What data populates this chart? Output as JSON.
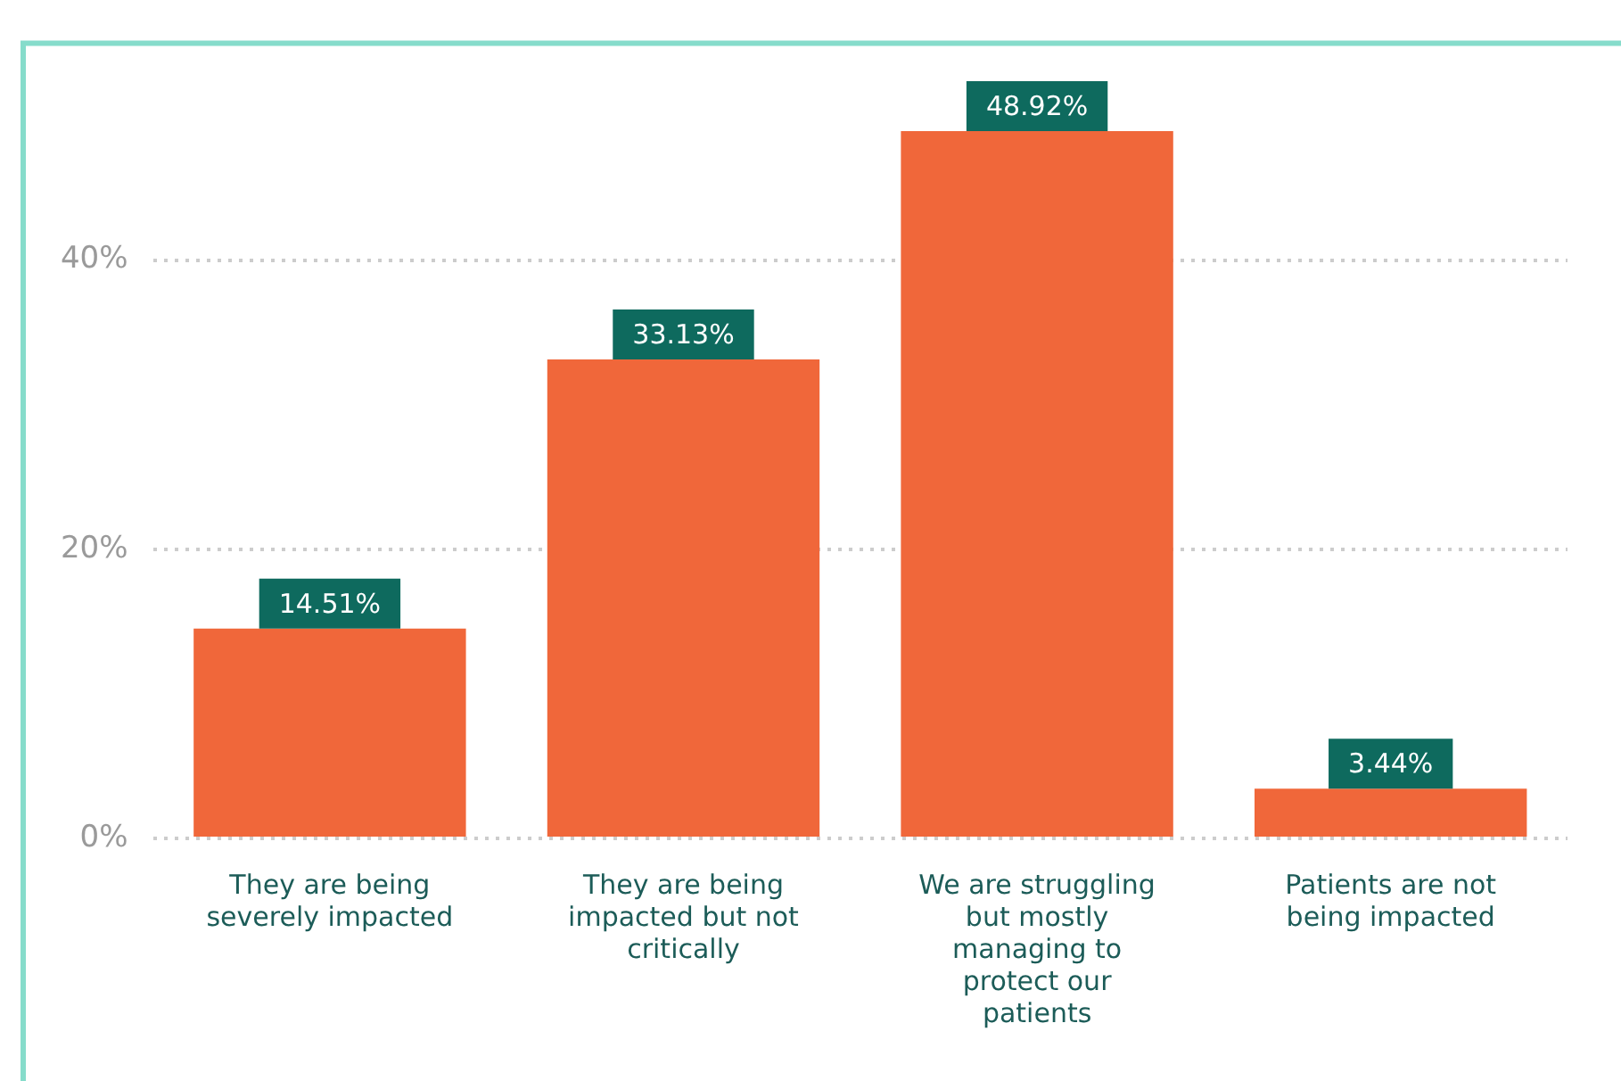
{
  "chart_data": {
    "type": "bar",
    "categories": [
      "They are being severely impacted",
      "They are being impacted but not critically",
      "We are struggling but mostly managing to protect our patients",
      "Patients are not being impacted"
    ],
    "values": [
      14.51,
      33.13,
      48.92,
      3.44
    ],
    "value_labels": [
      "14.51%",
      "33.13%",
      "48.92%",
      "3.44%"
    ],
    "color": "#f0673a",
    "ylim": [
      0,
      55
    ],
    "yticks": [
      {
        "value": 0,
        "label": "0%"
      },
      {
        "value": 20,
        "label": "20%"
      },
      {
        "value": 40,
        "label": "40%"
      }
    ],
    "grid": "y",
    "legend": false
  }
}
